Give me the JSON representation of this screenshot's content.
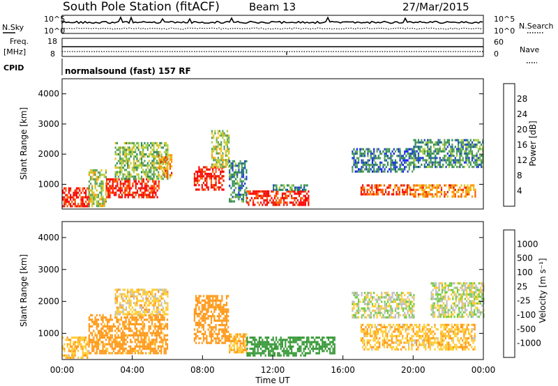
{
  "header": {
    "title": "South Pole Station (fitACF)",
    "beam": "Beam 13",
    "date": "27/Mar/2015"
  },
  "params": {
    "nsky_label": "N.Sky",
    "nsky_tick_top": "10^5",
    "nsky_tick_bottom": "10^0",
    "nsearch_label": "N.Search",
    "nsearch_tick_top": "10^5",
    "nsearch_tick_bottom": "10^0",
    "freq_label_1": "Freq.",
    "freq_label_2": "[MHz]",
    "freq_tick_top": "18",
    "freq_tick_bottom": "8",
    "nave_label": "Nave",
    "nave_tick_top": "60",
    "nave_tick_bottom": "0",
    "cpid_label": "CPID",
    "cpid_value": "normalsound (fast) 157 RF"
  },
  "colors": {
    "power": [
      "#1a1aff",
      "#2244cc",
      "#2e8b57",
      "#5aa35a",
      "#a8d040",
      "#e8c020",
      "#ff9900",
      "#ff5a00",
      "#e61a00",
      "#ff0000"
    ],
    "velocity": [
      "#ff0000",
      "#ff5a00",
      "#ff9a1a",
      "#ffcc33",
      "#c0c0c0",
      "#70cc40",
      "#3a9a3a",
      "#2e7d5a",
      "#1a44aa",
      "#1a1aff"
    ]
  },
  "chart_data": [
    {
      "type": "heatmap",
      "name": "power",
      "ylabel": "Slant Range [km]",
      "yticks": [
        "1000",
        "2000",
        "3000",
        "4000"
      ],
      "ylim": [
        180,
        4500
      ],
      "colorbar_label": "Power [dB]",
      "colorbar_ticks": [
        "4",
        "8",
        "12",
        "16",
        "20",
        "24",
        "28"
      ],
      "colorbar_range": [
        0,
        30
      ],
      "patches": [
        {
          "t0": 0.0,
          "t1": 1.5,
          "r0": 250,
          "r1": 900,
          "v": 27
        },
        {
          "t0": 1.5,
          "t1": 2.5,
          "r0": 300,
          "r1": 1500,
          "v": 14
        },
        {
          "t0": 2.5,
          "t1": 5.5,
          "r0": 600,
          "r1": 1200,
          "v": 26
        },
        {
          "t0": 3.0,
          "t1": 6.0,
          "r0": 1200,
          "r1": 2400,
          "v": 12
        },
        {
          "t0": 5.5,
          "t1": 6.2,
          "r0": 1200,
          "r1": 2000,
          "v": 20
        },
        {
          "t0": 7.5,
          "t1": 9.2,
          "r0": 800,
          "r1": 1600,
          "v": 26
        },
        {
          "t0": 8.5,
          "t1": 9.5,
          "r0": 1600,
          "r1": 2800,
          "v": 14
        },
        {
          "t0": 9.5,
          "t1": 10.5,
          "r0": 400,
          "r1": 1800,
          "v": 8
        },
        {
          "t0": 10.5,
          "t1": 14.0,
          "r0": 300,
          "r1": 800,
          "v": 26
        },
        {
          "t0": 12.0,
          "t1": 14.0,
          "r0": 800,
          "r1": 1000,
          "v": 8
        },
        {
          "t0": 16.5,
          "t1": 20.0,
          "r0": 1400,
          "r1": 2200,
          "v": 7
        },
        {
          "t0": 17.0,
          "t1": 20.0,
          "r0": 700,
          "r1": 1000,
          "v": 24
        },
        {
          "t0": 20.0,
          "t1": 23.5,
          "r0": 600,
          "r1": 1000,
          "v": 20
        },
        {
          "t0": 20.0,
          "t1": 24.0,
          "r0": 1600,
          "r1": 2500,
          "v": 9
        }
      ]
    },
    {
      "type": "heatmap",
      "name": "velocity",
      "ylabel": "Slant Range [km]",
      "yticks": [
        "1000",
        "2000",
        "3000",
        "4000"
      ],
      "ylim": [
        180,
        4500
      ],
      "xlabel": "Time UT",
      "xticks": [
        "00:00",
        "04:00",
        "08:00",
        "12:00",
        "16:00",
        "20:00",
        "00:00"
      ],
      "xlim": [
        0,
        24
      ],
      "colorbar_label": "Velocity [m s⁻¹]",
      "colorbar_ticks": [
        "-1000",
        "-500",
        "-100",
        "-25",
        "25",
        "100",
        "500",
        "1000"
      ],
      "patches": [
        {
          "t0": 0.0,
          "t1": 1.5,
          "r0": 250,
          "r1": 900,
          "v": -80
        },
        {
          "t0": 1.5,
          "t1": 6.0,
          "r0": 400,
          "r1": 1600,
          "v": -150
        },
        {
          "t0": 3.0,
          "t1": 6.0,
          "r0": 1600,
          "r1": 2400,
          "v": -60
        },
        {
          "t0": 7.5,
          "t1": 9.5,
          "r0": 700,
          "r1": 2200,
          "v": -200
        },
        {
          "t0": 9.5,
          "t1": 10.5,
          "r0": 400,
          "r1": 1000,
          "v": -100
        },
        {
          "t0": 10.5,
          "t1": 14.0,
          "r0": 300,
          "r1": 900,
          "v": 300
        },
        {
          "t0": 14.0,
          "t1": 15.5,
          "r0": 400,
          "r1": 900,
          "v": 200
        },
        {
          "t0": 16.5,
          "t1": 20.0,
          "r0": 1500,
          "r1": 2300,
          "v": 0
        },
        {
          "t0": 17.0,
          "t1": 23.5,
          "r0": 500,
          "r1": 1300,
          "v": -80
        },
        {
          "t0": 21.0,
          "t1": 24.0,
          "r0": 1500,
          "r1": 2600,
          "v": 10
        }
      ]
    }
  ]
}
